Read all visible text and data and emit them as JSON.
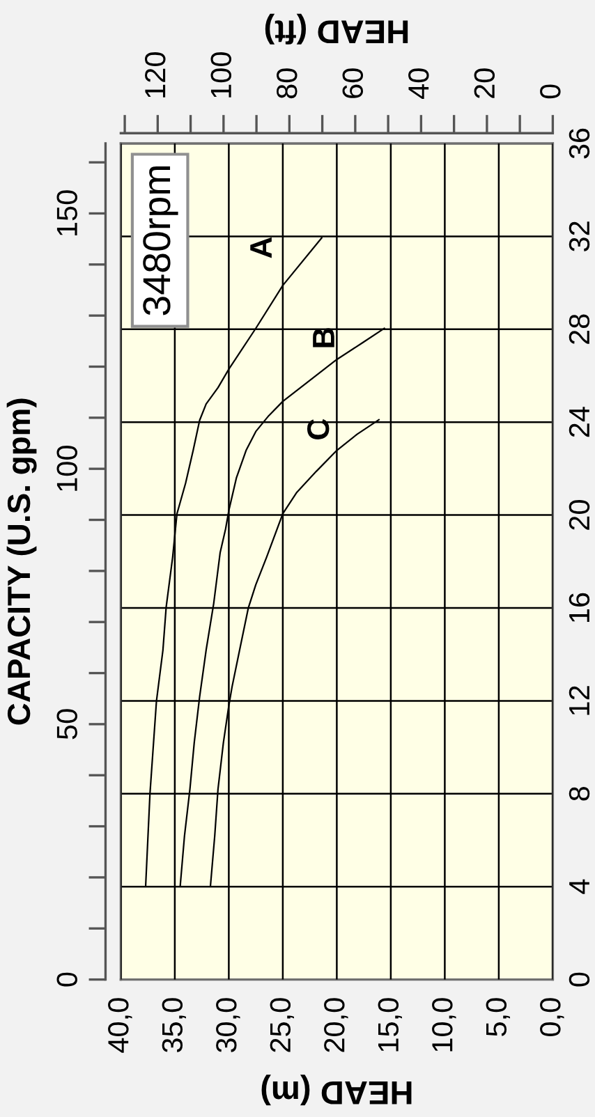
{
  "chart_data": {
    "type": "line",
    "xlabel": "HEAD (m)",
    "ylabel": "CAPACITY (U.S. gpm)",
    "x2label": "HEAD (ft)",
    "annotations": [
      "3480rpm"
    ],
    "xlim": [
      40,
      0
    ],
    "xticks": [
      {
        "value": 40,
        "label": "40,0"
      },
      {
        "value": 35,
        "label": "35,0"
      },
      {
        "value": 30,
        "label": "30,0"
      },
      {
        "value": 25,
        "label": "25,0"
      },
      {
        "value": 20,
        "label": "20,0"
      },
      {
        "value": 15,
        "label": "15,0"
      },
      {
        "value": 10,
        "label": "10,0"
      },
      {
        "value": 5,
        "label": "5,0"
      },
      {
        "value": 0,
        "label": "0,0"
      }
    ],
    "ylim": [
      0,
      163.7
    ],
    "yticks": [
      0,
      {
        "value": 10,
        "label": null
      },
      {
        "value": 20,
        "label": null
      },
      {
        "value": 30,
        "label": null
      },
      {
        "value": 40,
        "label": null
      },
      50,
      {
        "value": 60,
        "label": null
      },
      {
        "value": 70,
        "label": null
      },
      {
        "value": 80,
        "label": null
      },
      {
        "value": 90,
        "label": null
      },
      100,
      {
        "value": 110,
        "label": null
      },
      {
        "value": 120,
        "label": null
      },
      {
        "value": 130,
        "label": null
      },
      {
        "value": 140,
        "label": null
      },
      150,
      {
        "value": 160,
        "label": null
      }
    ],
    "x2lim": [
      131.2,
      0
    ],
    "x2ticks": [
      0,
      {
        "value": 10,
        "label": null
      },
      20,
      {
        "value": 30,
        "label": null
      },
      40,
      {
        "value": 50,
        "label": null
      },
      60,
      {
        "value": 70,
        "label": null
      },
      80,
      {
        "value": 90,
        "label": null
      },
      100,
      {
        "value": 110,
        "label": null
      },
      120,
      {
        "value": 130,
        "label": null
      }
    ],
    "y2lim": [
      0,
      36
    ],
    "y2ticks": [
      0,
      4,
      8,
      12,
      16,
      20,
      24,
      28,
      32,
      36
    ],
    "grid": true,
    "line_style": "solid",
    "series": [
      {
        "name": "A",
        "color": "#000000",
        "x": [
          37.7,
          37.3,
          36.7,
          36.1,
          35.8,
          35.2,
          34.8,
          34.0,
          33.3,
          32.7,
          32.1,
          31.0,
          30.0,
          27.5,
          25.0,
          21.4
        ],
        "values": [
          18.3,
          36.4,
          54.5,
          64.5,
          72.9,
          82.7,
          91.2,
          97.2,
          103.6,
          109.5,
          112.7,
          115.9,
          119.5,
          127.5,
          135.9,
          145.2
        ]
      },
      {
        "name": "B",
        "color": "#000000",
        "x": [
          34.5,
          34.1,
          33.6,
          33.2,
          32.7,
          32.1,
          31.4,
          30.8,
          30.3,
          30.0,
          29.3,
          28.4,
          27.5,
          26.3,
          25.0,
          22.8,
          20.0,
          17.6,
          15.6
        ],
        "values": [
          18.3,
          28.2,
          37.3,
          46.4,
          55.4,
          64.5,
          73.6,
          83.6,
          88.2,
          91.8,
          98.2,
          103.6,
          107.3,
          110.4,
          113.2,
          116.8,
          121.4,
          124.7,
          127.5
        ]
      },
      {
        "name": "C",
        "color": "#000000",
        "x": [
          31.7,
          31.3,
          31.0,
          30.5,
          30.0,
          29.7,
          29.0,
          28.2,
          27.5,
          26.5,
          25.0,
          23.7,
          21.9,
          20.0,
          18.1,
          16.1
        ],
        "values": [
          18.3,
          28.2,
          37.3,
          46.4,
          53.6,
          57.3,
          64.5,
          72.7,
          77.3,
          82.7,
          91.2,
          95.4,
          99.5,
          103.6,
          106.8,
          109.6
        ]
      }
    ]
  }
}
